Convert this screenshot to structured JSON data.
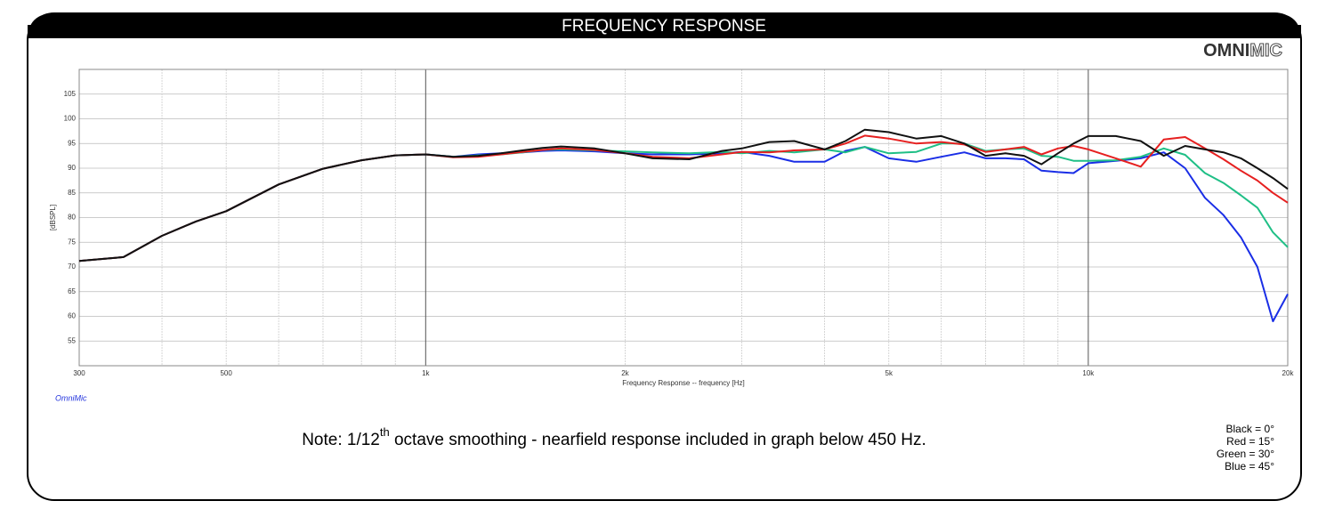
{
  "header": "FREQUENCY RESPONSE",
  "logo": [
    "OMNI",
    "MIC"
  ],
  "watermark": "OmniMic",
  "note": [
    "Note: 1/12",
    "th",
    " octave smoothing - nearfield response included in graph below 450 Hz."
  ],
  "chart_data": {
    "type": "line",
    "xlabel": "Frequency Response -- frequency [Hz]",
    "ylabel": "[dBSPL]",
    "xscale": "log",
    "xlim": [
      300,
      20000
    ],
    "ylim": [
      50,
      110
    ],
    "xticks": [
      300,
      500,
      {
        "value": 1000,
        "label": "1k"
      },
      {
        "value": 2000,
        "label": "2k"
      },
      {
        "value": 5000,
        "label": "5k"
      },
      {
        "value": 10000,
        "label": "10k"
      },
      {
        "value": 20000,
        "label": "20k"
      }
    ],
    "minor_xticks": [
      400,
      600,
      700,
      800,
      900,
      3000,
      4000,
      6000,
      7000,
      8000,
      9000
    ],
    "yticks": [
      55,
      60,
      65,
      70,
      75,
      80,
      85,
      90,
      95,
      100,
      105
    ],
    "grid": true,
    "legend": "bottom-right",
    "x": [
      300,
      350,
      400,
      450,
      500,
      600,
      700,
      800,
      900,
      1000,
      1100,
      1200,
      1300,
      1400,
      1500,
      1600,
      1800,
      2000,
      2200,
      2500,
      2800,
      3000,
      3300,
      3600,
      4000,
      4300,
      4600,
      5000,
      5500,
      6000,
      6500,
      7000,
      7500,
      8000,
      8500,
      9000,
      9500,
      10000,
      11000,
      12000,
      13000,
      14000,
      15000,
      16000,
      17000,
      18000,
      19000,
      20000
    ],
    "series": [
      {
        "name": "Blue = 45°",
        "color": "#1a2ee6",
        "values": [
          71.2,
          72.0,
          76.3,
          79.2,
          81.3,
          86.7,
          89.9,
          91.6,
          92.6,
          92.8,
          92.3,
          92.8,
          93,
          93.2,
          93.5,
          93.6,
          93.4,
          93,
          92.8,
          92.8,
          93,
          93.3,
          92.5,
          91.3,
          91.3,
          93.5,
          94.3,
          92,
          91.3,
          92.3,
          93.2,
          92,
          92,
          91.8,
          89.5,
          89.2,
          89,
          91,
          91.5,
          92,
          93.2,
          90,
          84,
          80.5,
          76,
          70,
          59,
          64.5
        ]
      },
      {
        "name": "Green = 30°",
        "color": "#1fbf86",
        "values": [
          71.2,
          72.0,
          76.3,
          79.2,
          81.3,
          86.7,
          89.9,
          91.6,
          92.6,
          92.8,
          92.3,
          92.6,
          92.8,
          93.2,
          93.7,
          93.8,
          93.6,
          93.4,
          93.2,
          93,
          93.3,
          93,
          93.5,
          93.2,
          93.8,
          93.2,
          94.3,
          93,
          93.3,
          95,
          95,
          93.5,
          93.8,
          94,
          92.5,
          92.3,
          91.5,
          91.5,
          91.6,
          92.3,
          94,
          92.7,
          89,
          87,
          84.5,
          82,
          77,
          74
        ]
      },
      {
        "name": "Red = 15°",
        "color": "#e62020",
        "values": [
          71.2,
          72.0,
          76.3,
          79.2,
          81.3,
          86.7,
          89.9,
          91.6,
          92.6,
          92.8,
          92.2,
          92.3,
          92.8,
          93.3,
          93.7,
          94,
          93.7,
          93,
          92.3,
          92,
          92.8,
          93.3,
          93.2,
          93.6,
          93.8,
          95,
          96.6,
          96,
          95,
          95.3,
          94.8,
          93.3,
          93.8,
          94.3,
          92.8,
          94,
          94.5,
          93.8,
          92,
          90.3,
          95.8,
          96.3,
          94,
          91.8,
          89.5,
          87.5,
          85,
          83
        ]
      },
      {
        "name": "Black = 0°",
        "color": "#111111",
        "values": [
          71.2,
          72.0,
          76.3,
          79.2,
          81.3,
          86.7,
          89.9,
          91.6,
          92.6,
          92.8,
          92.3,
          92.5,
          93,
          93.6,
          94.1,
          94.4,
          94,
          93,
          92,
          91.8,
          93.5,
          94,
          95.3,
          95.5,
          93.8,
          95.5,
          97.8,
          97.3,
          96,
          96.5,
          95,
          92.5,
          93,
          92.5,
          90.8,
          93,
          95,
          96.5,
          96.5,
          95.5,
          92.5,
          94.5,
          93.8,
          93.2,
          92,
          90,
          88,
          85.8
        ]
      }
    ]
  }
}
